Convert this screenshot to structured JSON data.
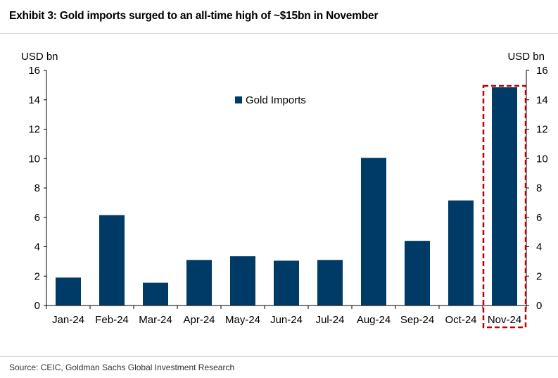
{
  "header": {
    "title": "Exhibit 3: Gold imports surged to an all-time high of ~$15bn in November"
  },
  "footer": {
    "source": "Source: CEIC, Goldman Sachs Global Investment Research"
  },
  "colors": {
    "bar": "#003a66",
    "highlight": "#c00000",
    "axis": "#000000"
  },
  "chart_data": {
    "type": "bar",
    "title": "",
    "categories": [
      "Jan-24",
      "Feb-24",
      "Mar-24",
      "Apr-24",
      "May-24",
      "Jun-24",
      "Jul-24",
      "Aug-24",
      "Sep-24",
      "Oct-24",
      "Nov-24"
    ],
    "series": [
      {
        "name": "Gold Imports",
        "values": [
          1.9,
          6.15,
          1.55,
          3.1,
          3.35,
          3.05,
          3.1,
          10.05,
          4.4,
          7.15,
          14.85
        ]
      }
    ],
    "ylabel_left": "USD bn",
    "ylabel_right": "USD bn",
    "ylim": [
      0,
      16
    ],
    "yticks": [
      0,
      2,
      4,
      6,
      8,
      10,
      12,
      14,
      16
    ],
    "legend_position": "top-center",
    "grid": false,
    "highlight_category": "Nov-24"
  }
}
